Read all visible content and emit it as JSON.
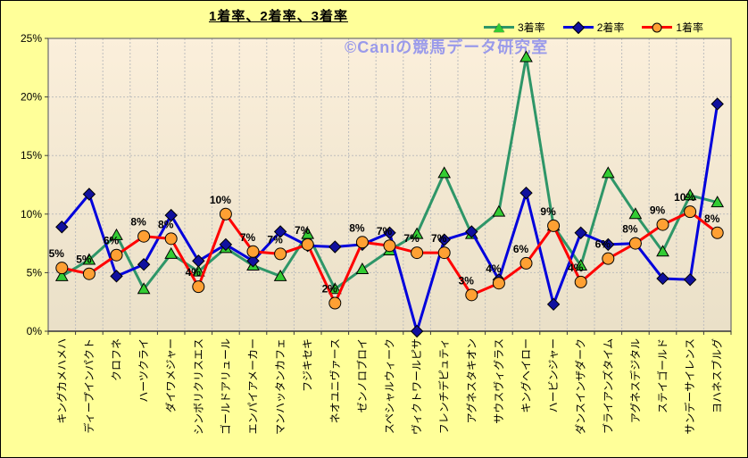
{
  "title": "1着率、2着率、3着率",
  "watermark": "©Caniの競馬データ研究室",
  "colors": {
    "page_bg": "#FFFF99",
    "plot_bg_top": "#FBEFDB",
    "plot_bg_bottom": "#EAE0C8",
    "grid": "#BDBDBD",
    "plot_border": "#6B6B6B",
    "axis": "#3C3C3C",
    "watermark": "#9A9AEA",
    "text": "#000000"
  },
  "legend": [
    {
      "label": "3着率",
      "slug": "third-place-rate",
      "marker": "triangle",
      "line_color": "#2E9668",
      "marker_color": "#33CC33"
    },
    {
      "label": "2着率",
      "slug": "second-place-rate",
      "marker": "diamond",
      "line_color": "#0000DC",
      "marker_color": "#10109E"
    },
    {
      "label": "1着率",
      "slug": "first-place-rate",
      "marker": "circle",
      "line_color": "#FF0000",
      "marker_color": "#FFA033"
    }
  ],
  "chart_data": {
    "type": "line",
    "title": "1着率、2着率、3着率",
    "categories": [
      "キングカメハメハ",
      "ディープインパクト",
      "クロフネ",
      "ハーツクライ",
      "ダイワメジャー",
      "シンボリクリスエス",
      "ゴールドアリュール",
      "エンパイアメーカー",
      "マンハッタンカフェ",
      "フジキセキ",
      "ネオユニヴァース",
      "ゼンノロブロイ",
      "スペシャルウィーク",
      "ヴィクトワールピサ",
      "フレンチデピュティ",
      "アグネスタキオン",
      "サウスヴィグラス",
      "キングヘイロー",
      "ハービンジャー",
      "ダンスインザダーク",
      "ブライアンズタイム",
      "アグネスデジタル",
      "ステイゴールド",
      "サンデーサイレンス",
      "ヨハネスブルグ"
    ],
    "series": [
      {
        "name": "3着率",
        "slug": "third-place-rate",
        "color": "#2E9668",
        "marker": "triangle",
        "marker_color": "#33CC33",
        "values": [
          4.7,
          6.1,
          8.2,
          3.6,
          6.6,
          5.1,
          7.1,
          5.6,
          4.7,
          8.3,
          3.6,
          5.3,
          6.9,
          8.3,
          13.5,
          8.3,
          10.2,
          23.4,
          9.0,
          5.6,
          13.5,
          10.0,
          6.8,
          11.6,
          11.0
        ]
      },
      {
        "name": "2着率",
        "slug": "second-place-rate",
        "color": "#0000DC",
        "marker": "diamond",
        "marker_color": "#10109E",
        "values": [
          8.9,
          11.7,
          4.7,
          5.7,
          9.9,
          6.0,
          7.4,
          6.0,
          8.5,
          7.3,
          7.2,
          7.4,
          8.4,
          0.0,
          7.8,
          8.5,
          4.4,
          11.8,
          2.3,
          8.4,
          7.4,
          7.5,
          4.5,
          4.4,
          19.4
        ]
      },
      {
        "name": "1着率",
        "slug": "first-place-rate",
        "color": "#FF0000",
        "marker": "circle",
        "marker_color": "#FFA033",
        "values": [
          5.4,
          4.9,
          6.5,
          8.1,
          7.9,
          3.8,
          10.0,
          6.8,
          6.6,
          7.4,
          2.4,
          7.6,
          7.3,
          6.7,
          6.7,
          3.1,
          4.1,
          5.8,
          9.0,
          4.2,
          6.2,
          7.5,
          9.1,
          10.2,
          8.4
        ],
        "data_labels": [
          "5%",
          "5%",
          "6%",
          "8%",
          "8%",
          "4%",
          "10%",
          "7%",
          "7%",
          "7%",
          "2%",
          "8%",
          "7%",
          "7%",
          "7%",
          "3%",
          "4%",
          "6%",
          "9%",
          "4%",
          "6%",
          "8%",
          "9%",
          "10%",
          "8%"
        ]
      }
    ],
    "ylim": [
      0,
      25
    ],
    "yticks": [
      "0%",
      "5%",
      "10%",
      "15%",
      "20%",
      "25%"
    ],
    "ytick_values": [
      0,
      5,
      10,
      15,
      20,
      25
    ],
    "grid": true,
    "legend_position": "top-right",
    "xlabel_rotation": -90
  }
}
